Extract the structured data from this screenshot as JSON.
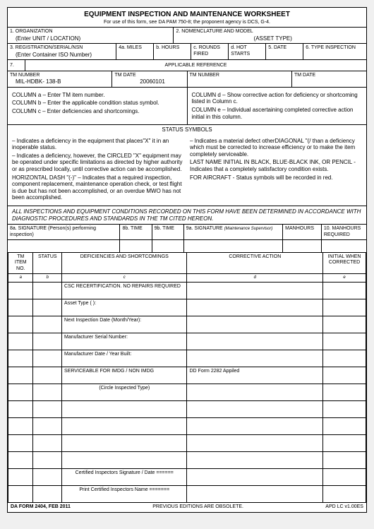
{
  "title": "EQUIPMENT INSPECTION AND MAINTENANCE WORKSHEET",
  "subtitle": "For use of this form, see DA PAM 750-8; the proponent agency is DCS, G-4.",
  "r1": {
    "orgLabel": "1.  ORGANIZATION",
    "nomLabel": "2.  NOMENCLATURE AND MODEL",
    "orgVal": "(Enter UNIT / LOCATION)",
    "assetVal": "(ASSET TYPE)"
  },
  "r2": {
    "regLabel": "3.  REGISTRATION/SERIAL/NSN",
    "regVal": "(Enter Container ISO Number)",
    "milesLabel": "4a. MILES",
    "hoursLabel": "b. HOURS",
    "roundsLabel": "c. ROUNDS FIRED",
    "hotLabel": "d. HOT STARTS",
    "dateLabel": "5.  DATE",
    "typeLabel": "6.  TYPE INSPECTION"
  },
  "r3": {
    "seven": "7.",
    "appRef": "APPLICABLE REFERENCE"
  },
  "r4": {
    "tmNumLabel": "TM NUMBER",
    "tmDateLabel": "TM DATE",
    "tmNum2Label": "TM NUMBER",
    "tmDate2Label": "TM DATE",
    "tmNumVal": "MIL-HDBK- 138-B",
    "tmDateVal": "20060101"
  },
  "colsLeft": {
    "a": "COLUMN a – Enter TM item number.",
    "b": "COLUMN b – Enter the applicable condition status symbol.",
    "c": "COLUMN c – Enter deficiencies and shortcomings."
  },
  "colsRight": {
    "d": "COLUMN d – Show corrective action for deficiency or shortcoming listed in Column c.",
    "e": "COLUMN e – Individual ascertaining completed corrective action initial in this column."
  },
  "symTitle": "STATUS SYMBOLS",
  "symbols": {
    "p1": "– Indicates a deficiency in the equipment that places\"X\" it in an inoperable status.",
    "p2": "– Indicates a deficiency, however, the CIRCLED \"X\" equipment may be operated under specific limitations as directed by higher authority or as prescribed locally, until corrective action can be accomplished.",
    "p3": "HORIZONTAL DASH \"(-)\" – Indicates that a required inspection, component replacement, maintenance operation check, or test flight is due but has not been accomplished, or an overdue MWO has not been accomplished.",
    "p4": "– Indicates a material defect otherDIAGONAL \"(/ than a deficiency which must be corrected to increase efficiency or to make the item completely serviceable.",
    "p5": "LAST NAME INITIAL IN BLACK, BLUE-BLACK INK, OR PENCIL - Indicates that a completely satisfactory condition exists.",
    "p6": "FOR AIRCRAFT - Status symbols will be recorded in red."
  },
  "notice": "ALL INSPECTIONS AND EQUIPMENT CONDITIONS RECORDED ON THIS FORM HAVE BEEN DETERMINED IN ACCORDANCE WITH DIAGNOSTIC PROCEDURES AND STANDARDS IN THE TM CITED HEREON.",
  "sig": {
    "a": "8a. SIGNATURE (Person(s) performing inspection)",
    "b": "8b. TIME",
    "c": "9b. TIME",
    "d": "9a. SIGNATURE",
    "e": "(Maintenance Supervisor)",
    "f": "MANHOURS",
    "g": "10. MANHOURS REQUIRED"
  },
  "th": {
    "tm": "TM ITEM NO.",
    "status": "STATUS",
    "def": "DEFICIENCIES AND SHORTCOMINGS",
    "corr": "CORRECTIVE ACTION",
    "init": "INITIAL WHEN CORRECTED",
    "a": "a",
    "b": "b",
    "c": "c",
    "d": "d",
    "e": "e"
  },
  "rows": [
    "CSC RECERTIFICATION.  NO REPAIRS REQUIRED",
    "Asset Type ( ):",
    "Next Inspection Date (Month/Year):",
    "Manufacturer Serial Number:",
    "Manufacturer Date / Year Built:",
    "SERVICEABLE FOR    IMDG   /   NON  IMDG",
    "(Circle Inspected Type)",
    "",
    "",
    "",
    "",
    "Certified Inspectors Signature /  Date  ======",
    "Print Certified Inspectors Name ======="
  ],
  "row5d": "DD Form 2282 Appiled",
  "footer": {
    "left": "DA FORM 2404, FEB 2011",
    "mid": "PREVIOUS EDITIONS ARE OBSOLETE.",
    "right": "APD LC v1.00ES"
  }
}
